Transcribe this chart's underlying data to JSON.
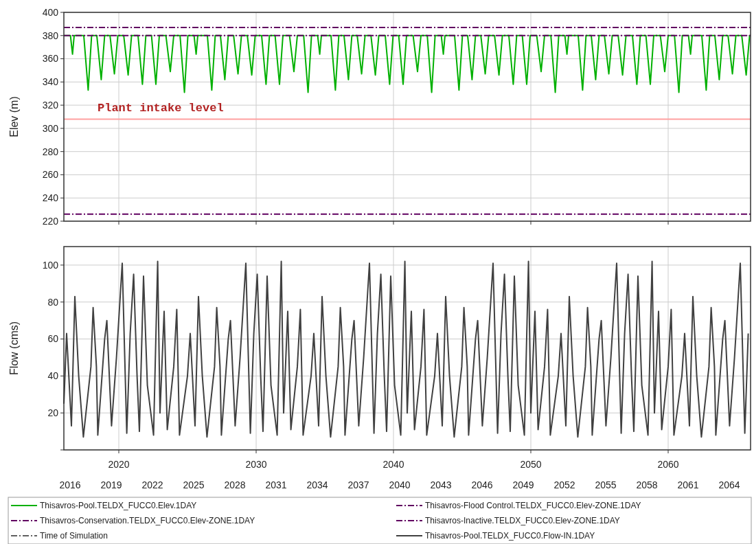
{
  "chart_data": [
    {
      "type": "line",
      "ylabel": "Elev (m)",
      "xlim": [
        2016,
        2066
      ],
      "xticks": [
        2020,
        2030,
        2040,
        2050,
        2060
      ],
      "ylim": [
        220,
        400
      ],
      "yticks": [
        220,
        240,
        260,
        280,
        300,
        320,
        340,
        360,
        380,
        400
      ],
      "grid": true,
      "legend": "bottom",
      "tick_labels": "y",
      "ref_lines": [
        {
          "axis": "y",
          "value": 308,
          "label": "Plant intake level",
          "color": "#ffa0a0"
        }
      ],
      "series": [
        {
          "name": "Thisavros-Pool.TELDX_FUCC0.Elev.1DAY",
          "color": "#00b000",
          "line_style": "solid",
          "x": [
            2016,
            2016.48,
            2016.63,
            2016.75,
            2017.45,
            2017.77,
            2018.02,
            2018.4,
            2018.72,
            2018.97,
            2019.36,
            2019.68,
            2019.93,
            2020.36,
            2020.68,
            2020.93,
            2021.4,
            2021.72,
            2021.97,
            2022.38,
            2022.7,
            2022.95,
            2023.43,
            2023.75,
            2024,
            2024.46,
            2024.78,
            2025.03,
            2025.48,
            2025.63,
            2025.75,
            2026.45,
            2026.77,
            2027.02,
            2027.4,
            2027.72,
            2027.97,
            2028.36,
            2028.68,
            2028.93,
            2029.36,
            2029.68,
            2029.93,
            2030.4,
            2030.72,
            2030.97,
            2031.38,
            2031.7,
            2031.95,
            2032.43,
            2032.75,
            2033,
            2033.46,
            2033.78,
            2034.03,
            2034.48,
            2034.63,
            2034.75,
            2035.45,
            2035.77,
            2036.02,
            2036.4,
            2036.72,
            2036.97,
            2037.36,
            2037.68,
            2037.93,
            2038.36,
            2038.68,
            2038.93,
            2039.4,
            2039.72,
            2039.97,
            2040.38,
            2040.7,
            2040.95,
            2041.43,
            2041.75,
            2042,
            2042.46,
            2042.78,
            2043.03,
            2043.48,
            2043.63,
            2043.75,
            2044.45,
            2044.77,
            2045.02,
            2045.4,
            2045.72,
            2045.97,
            2046.36,
            2046.68,
            2046.93,
            2047.36,
            2047.68,
            2047.93,
            2048.4,
            2048.72,
            2048.97,
            2049.38,
            2049.7,
            2049.95,
            2050.43,
            2050.75,
            2051,
            2051.46,
            2051.78,
            2052.03,
            2052.48,
            2052.63,
            2052.75,
            2053.45,
            2053.77,
            2054.02,
            2054.4,
            2054.72,
            2054.97,
            2055.36,
            2055.68,
            2055.93,
            2056.36,
            2056.68,
            2056.93,
            2057.4,
            2057.72,
            2057.97,
            2058.38,
            2058.7,
            2058.95,
            2059.43,
            2059.75,
            2060,
            2060.46,
            2060.78,
            2061.03,
            2061.48,
            2061.63,
            2061.75,
            2062.45,
            2062.77,
            2063.02,
            2063.4,
            2063.72,
            2063.97,
            2064.36,
            2064.68,
            2064.93,
            2065.36,
            2065.68,
            2065.93,
            2066
          ],
          "values": [
            380,
            380,
            364,
            380,
            380,
            333,
            380,
            380,
            342,
            380,
            380,
            347,
            380,
            380,
            346,
            380,
            380,
            338,
            380,
            380,
            338,
            380,
            380,
            349,
            380,
            380,
            331,
            380,
            380,
            364,
            380,
            380,
            333,
            380,
            380,
            342,
            380,
            380,
            347,
            380,
            380,
            346,
            380,
            380,
            338,
            380,
            380,
            338,
            380,
            380,
            349,
            380,
            380,
            331,
            380,
            380,
            364,
            380,
            380,
            333,
            380,
            380,
            342,
            380,
            380,
            347,
            380,
            380,
            346,
            380,
            380,
            338,
            380,
            380,
            338,
            380,
            380,
            349,
            380,
            380,
            331,
            380,
            380,
            364,
            380,
            380,
            333,
            380,
            380,
            342,
            380,
            380,
            347,
            380,
            380,
            346,
            380,
            380,
            338,
            380,
            380,
            338,
            380,
            380,
            349,
            380,
            380,
            331,
            380,
            380,
            364,
            380,
            380,
            333,
            380,
            380,
            342,
            380,
            380,
            347,
            380,
            380,
            346,
            380,
            380,
            338,
            380,
            380,
            338,
            380,
            380,
            349,
            380,
            380,
            331,
            380,
            380,
            364,
            380,
            380,
            333,
            380,
            380,
            342,
            380,
            380,
            347,
            380,
            380,
            346,
            380,
            380
          ]
        },
        {
          "name": "Thisavros-Flood Control.TELDX_FUCC0.Elev-ZONE.1DAY",
          "color": "#600060",
          "line_style": "dashed",
          "x": [
            2016,
            2066
          ],
          "values": [
            387,
            387
          ]
        },
        {
          "name": "Thisavros-Conservation.TELDX_FUCC0.Elev-ZONE.1DAY",
          "color": "#600060",
          "line_style": "dashed",
          "x": [
            2016,
            2066
          ],
          "values": [
            380,
            380
          ]
        },
        {
          "name": "Thisavros-Inactive.TELDX_FUCC0.Elev-ZONE.1DAY",
          "color": "#600060",
          "line_style": "dashed",
          "x": [
            2016,
            2066
          ],
          "values": [
            226,
            226
          ]
        },
        {
          "name": "Time of Simulation",
          "color": "#606060",
          "line_style": "dashed"
        }
      ]
    },
    {
      "type": "line",
      "ylabel": "Flow (cms)",
      "xlim": [
        2016,
        2066
      ],
      "xticks": [
        2020,
        2030,
        2040,
        2050,
        2060
      ],
      "x2lim": [
        2016,
        2066
      ],
      "x2ticks": [
        {
          "value": 2016.45,
          "label": "2016"
        },
        {
          "value": 2019.45,
          "label": "2019"
        },
        {
          "value": 2022.45,
          "label": "2022"
        },
        {
          "value": 2025.45,
          "label": "2025"
        },
        {
          "value": 2028.45,
          "label": "2028"
        },
        {
          "value": 2031.45,
          "label": "2031"
        },
        {
          "value": 2034.45,
          "label": "2034"
        },
        {
          "value": 2037.45,
          "label": "2037"
        },
        {
          "value": 2040.45,
          "label": "2040"
        },
        {
          "value": 2043.45,
          "label": "2043"
        },
        {
          "value": 2046.45,
          "label": "2046"
        },
        {
          "value": 2049.45,
          "label": "2049"
        },
        {
          "value": 2052.45,
          "label": "2052"
        },
        {
          "value": 2055.45,
          "label": "2055"
        },
        {
          "value": 2058.45,
          "label": "2058"
        },
        {
          "value": 2061.45,
          "label": "2061"
        },
        {
          "value": 2064.45,
          "label": "2064"
        }
      ],
      "ylim": [
        0,
        110
      ],
      "yticks": [
        {
          "value": 0,
          "label": null
        },
        20,
        40,
        60,
        80,
        100
      ],
      "grid": true,
      "legend": "bottom",
      "series": [
        {
          "name": "Thisavros-Pool.TELDX_FUCC0.Flow-IN.1DAY",
          "color": "#404040",
          "line_style": "solid",
          "x": [
            2016,
            2016.2,
            2016.55,
            2016.8,
            2017.08,
            2017.42,
            2017.97,
            2018.13,
            2018.37,
            2018.47,
            2018.97,
            2019.13,
            2019.37,
            2019.47,
            2019.83,
            2020.25,
            2020.58,
            2020.83,
            2021.08,
            2021.33,
            2021.5,
            2021.8,
            2022.08,
            2022.53,
            2022.83,
            2023,
            2023.3,
            2023.53,
            2024,
            2024.22,
            2024.42,
            2025,
            2025.2,
            2025.55,
            2025.8,
            2026.08,
            2026.42,
            2026.97,
            2027.13,
            2027.37,
            2027.47,
            2027.97,
            2028.13,
            2028.37,
            2028.47,
            2028.83,
            2029.25,
            2029.58,
            2029.83,
            2030.08,
            2030.33,
            2030.5,
            2030.8,
            2031.08,
            2031.53,
            2031.83,
            2032,
            2032.3,
            2032.53,
            2033,
            2033.22,
            2033.42,
            2034,
            2034.2,
            2034.55,
            2034.8,
            2035.08,
            2035.42,
            2035.97,
            2036.13,
            2036.37,
            2036.47,
            2036.97,
            2037.13,
            2037.37,
            2037.47,
            2037.83,
            2038.25,
            2038.58,
            2038.83,
            2039.08,
            2039.33,
            2039.5,
            2039.8,
            2040.08,
            2040.53,
            2040.83,
            2041,
            2041.3,
            2041.53,
            2042,
            2042.22,
            2042.42,
            2043,
            2043.2,
            2043.55,
            2043.8,
            2044.08,
            2044.42,
            2044.97,
            2045.13,
            2045.37,
            2045.47,
            2045.97,
            2046.13,
            2046.37,
            2046.47,
            2046.83,
            2047.25,
            2047.58,
            2047.83,
            2048.08,
            2048.33,
            2048.5,
            2048.8,
            2049.08,
            2049.53,
            2049.83,
            2050,
            2050.3,
            2050.53,
            2051,
            2051.22,
            2051.42,
            2052,
            2052.2,
            2052.55,
            2052.8,
            2053.08,
            2053.42,
            2053.97,
            2054.13,
            2054.37,
            2054.47,
            2054.97,
            2055.13,
            2055.37,
            2055.47,
            2055.83,
            2056.25,
            2056.58,
            2056.83,
            2057.08,
            2057.33,
            2057.5,
            2057.8,
            2058.08,
            2058.53,
            2058.83,
            2059,
            2059.3,
            2059.53,
            2060,
            2060.22,
            2060.42,
            2061,
            2061.2,
            2061.55,
            2061.8,
            2062.08,
            2062.42,
            2062.97,
            2063.13,
            2063.37,
            2063.47,
            2063.97,
            2064.13,
            2064.37,
            2064.47,
            2064.83,
            2065.25,
            2065.58,
            2065.83
          ],
          "values": [
            25,
            63,
            13,
            83,
            40,
            7,
            45,
            77,
            45,
            8,
            60,
            70,
            30,
            13,
            50,
            101,
            9,
            63,
            95,
            40,
            10,
            94,
            35,
            8,
            102,
            20,
            75,
            11,
            45,
            76,
            8,
            40,
            63,
            13,
            83,
            40,
            7,
            45,
            77,
            45,
            8,
            60,
            70,
            30,
            13,
            50,
            101,
            9,
            63,
            95,
            40,
            10,
            94,
            35,
            8,
            102,
            20,
            75,
            11,
            45,
            76,
            8,
            40,
            63,
            13,
            83,
            40,
            7,
            45,
            77,
            45,
            8,
            60,
            70,
            30,
            13,
            50,
            101,
            9,
            63,
            95,
            40,
            10,
            94,
            35,
            8,
            102,
            20,
            75,
            11,
            45,
            76,
            8,
            40,
            63,
            13,
            83,
            40,
            7,
            45,
            77,
            45,
            8,
            60,
            70,
            30,
            13,
            50,
            101,
            9,
            63,
            95,
            40,
            10,
            94,
            35,
            8,
            102,
            20,
            75,
            11,
            45,
            76,
            8,
            40,
            63,
            13,
            83,
            40,
            7,
            45,
            77,
            45,
            8,
            60,
            70,
            30,
            13,
            50,
            101,
            9,
            63,
            95,
            40,
            10,
            94,
            35,
            8,
            102,
            20,
            75,
            11,
            45,
            76,
            8,
            40,
            63,
            13,
            83,
            40,
            7,
            45,
            77,
            45,
            8,
            60,
            70,
            30,
            13,
            50,
            101,
            9,
            63
          ]
        }
      ]
    }
  ]
}
